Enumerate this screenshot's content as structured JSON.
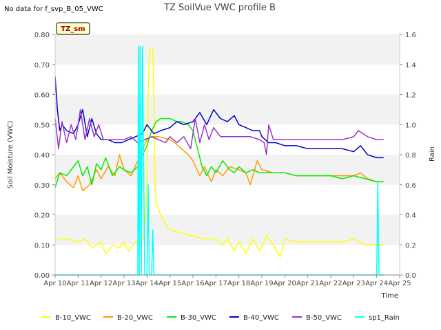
{
  "header": {
    "no_data_note": "No data for f_svp_B_05_VWC"
  },
  "badge": {
    "label": "TZ_sm"
  },
  "chart_data": {
    "type": "line",
    "title": "TZ SoilVue VWC profile B",
    "xlabel": "Time",
    "ylabel": "Soil Moisture (VWC)",
    "y2label": "Rain",
    "x_ticks": [
      "Apr 10",
      "Apr 11",
      "Apr 12",
      "Apr 13",
      "Apr 14",
      "Apr 15",
      "Apr 16",
      "Apr 17",
      "Apr 18",
      "Apr 19",
      "Apr 20",
      "Apr 21",
      "Apr 22",
      "Apr 23",
      "Apr 24",
      "Apr 25"
    ],
    "xlim": [
      10,
      25
    ],
    "ylim": [
      0,
      0.8
    ],
    "y_ticks": [
      "0.00",
      "0.10",
      "0.20",
      "0.30",
      "0.40",
      "0.50",
      "0.60",
      "0.70",
      "0.80"
    ],
    "y2lim": [
      0,
      1.6
    ],
    "y2_ticks": [
      "0.0",
      "0.2",
      "0.4",
      "0.6",
      "0.8",
      "1.0",
      "1.2",
      "1.4",
      "1.6"
    ],
    "grid": "horizontal bands",
    "legend_position": "bottom",
    "series": [
      {
        "name": "B-10_VWC",
        "color": "#ffff00",
        "axis": "left",
        "points": [
          [
            10.0,
            0.12
          ],
          [
            10.5,
            0.12
          ],
          [
            11.0,
            0.11
          ],
          [
            11.3,
            0.12
          ],
          [
            11.6,
            0.09
          ],
          [
            12.0,
            0.11
          ],
          [
            12.2,
            0.07
          ],
          [
            12.5,
            0.1
          ],
          [
            12.8,
            0.09
          ],
          [
            13.0,
            0.11
          ],
          [
            13.2,
            0.08
          ],
          [
            13.5,
            0.11
          ],
          [
            13.7,
            0.1
          ],
          [
            13.85,
            0.13
          ],
          [
            13.95,
            0.2
          ],
          [
            14.0,
            0.35
          ],
          [
            14.05,
            0.6
          ],
          [
            14.1,
            0.72
          ],
          [
            14.15,
            0.75
          ],
          [
            14.25,
            0.75
          ],
          [
            14.3,
            0.6
          ],
          [
            14.35,
            0.3
          ],
          [
            14.4,
            0.24
          ],
          [
            14.6,
            0.2
          ],
          [
            14.8,
            0.17
          ],
          [
            15.0,
            0.15
          ],
          [
            15.5,
            0.14
          ],
          [
            16.0,
            0.13
          ],
          [
            16.5,
            0.12
          ],
          [
            17.0,
            0.12
          ],
          [
            17.3,
            0.1
          ],
          [
            17.5,
            0.12
          ],
          [
            17.8,
            0.08
          ],
          [
            18.0,
            0.11
          ],
          [
            18.3,
            0.07
          ],
          [
            18.6,
            0.12
          ],
          [
            18.9,
            0.08
          ],
          [
            19.2,
            0.13
          ],
          [
            19.5,
            0.1
          ],
          [
            19.8,
            0.06
          ],
          [
            20.0,
            0.12
          ],
          [
            20.5,
            0.11
          ],
          [
            21.0,
            0.11
          ],
          [
            21.5,
            0.11
          ],
          [
            22.0,
            0.11
          ],
          [
            22.5,
            0.11
          ],
          [
            23.0,
            0.12
          ],
          [
            23.5,
            0.1
          ],
          [
            24.0,
            0.1
          ],
          [
            24.3,
            0.1
          ]
        ]
      },
      {
        "name": "B-20_VWC",
        "color": "#ff9900",
        "axis": "left",
        "points": [
          [
            10.0,
            0.32
          ],
          [
            10.2,
            0.34
          ],
          [
            10.5,
            0.31
          ],
          [
            10.8,
            0.29
          ],
          [
            11.0,
            0.33
          ],
          [
            11.2,
            0.28
          ],
          [
            11.5,
            0.3
          ],
          [
            11.8,
            0.35
          ],
          [
            12.0,
            0.32
          ],
          [
            12.3,
            0.36
          ],
          [
            12.6,
            0.33
          ],
          [
            12.8,
            0.4
          ],
          [
            13.0,
            0.35
          ],
          [
            13.3,
            0.33
          ],
          [
            13.6,
            0.38
          ],
          [
            13.8,
            0.42
          ],
          [
            14.0,
            0.45
          ],
          [
            14.2,
            0.46
          ],
          [
            14.5,
            0.46
          ],
          [
            15.0,
            0.45
          ],
          [
            15.2,
            0.44
          ],
          [
            15.5,
            0.42
          ],
          [
            15.8,
            0.4
          ],
          [
            16.0,
            0.38
          ],
          [
            16.3,
            0.33
          ],
          [
            16.5,
            0.36
          ],
          [
            16.8,
            0.31
          ],
          [
            17.0,
            0.35
          ],
          [
            17.3,
            0.33
          ],
          [
            17.6,
            0.36
          ],
          [
            18.0,
            0.35
          ],
          [
            18.3,
            0.34
          ],
          [
            18.5,
            0.3
          ],
          [
            18.8,
            0.38
          ],
          [
            19.0,
            0.35
          ],
          [
            19.5,
            0.34
          ],
          [
            20.0,
            0.34
          ],
          [
            20.5,
            0.33
          ],
          [
            21.0,
            0.33
          ],
          [
            22.0,
            0.33
          ],
          [
            22.5,
            0.33
          ],
          [
            23.0,
            0.33
          ],
          [
            23.3,
            0.34
          ],
          [
            23.6,
            0.32
          ],
          [
            24.0,
            0.31
          ],
          [
            24.3,
            0.31
          ]
        ]
      },
      {
        "name": "B-30_VWC",
        "color": "#00ee00",
        "axis": "left",
        "points": [
          [
            10.0,
            0.29
          ],
          [
            10.2,
            0.34
          ],
          [
            10.5,
            0.33
          ],
          [
            10.8,
            0.36
          ],
          [
            11.0,
            0.38
          ],
          [
            11.2,
            0.33
          ],
          [
            11.4,
            0.36
          ],
          [
            11.6,
            0.3
          ],
          [
            11.8,
            0.37
          ],
          [
            12.0,
            0.35
          ],
          [
            12.2,
            0.39
          ],
          [
            12.5,
            0.33
          ],
          [
            12.8,
            0.36
          ],
          [
            13.0,
            0.35
          ],
          [
            13.3,
            0.34
          ],
          [
            13.6,
            0.36
          ],
          [
            13.8,
            0.4
          ],
          [
            14.0,
            0.43
          ],
          [
            14.2,
            0.48
          ],
          [
            14.4,
            0.51
          ],
          [
            14.6,
            0.52
          ],
          [
            15.0,
            0.52
          ],
          [
            15.3,
            0.51
          ],
          [
            15.5,
            0.51
          ],
          [
            15.8,
            0.5
          ],
          [
            16.0,
            0.48
          ],
          [
            16.2,
            0.42
          ],
          [
            16.4,
            0.36
          ],
          [
            16.6,
            0.33
          ],
          [
            16.8,
            0.36
          ],
          [
            17.0,
            0.34
          ],
          [
            17.3,
            0.38
          ],
          [
            17.6,
            0.35
          ],
          [
            17.8,
            0.34
          ],
          [
            18.0,
            0.36
          ],
          [
            18.3,
            0.34
          ],
          [
            18.6,
            0.35
          ],
          [
            18.9,
            0.34
          ],
          [
            19.2,
            0.34
          ],
          [
            19.5,
            0.34
          ],
          [
            20.0,
            0.34
          ],
          [
            20.5,
            0.33
          ],
          [
            21.0,
            0.33
          ],
          [
            21.5,
            0.33
          ],
          [
            22.0,
            0.33
          ],
          [
            22.5,
            0.32
          ],
          [
            23.0,
            0.33
          ],
          [
            23.5,
            0.32
          ],
          [
            24.0,
            0.31
          ],
          [
            24.3,
            0.31
          ]
        ]
      },
      {
        "name": "B-40_VWC",
        "color": "#0000cc",
        "axis": "left",
        "points": [
          [
            10.0,
            0.66
          ],
          [
            10.1,
            0.55
          ],
          [
            10.2,
            0.48
          ],
          [
            10.3,
            0.5
          ],
          [
            10.5,
            0.48
          ],
          [
            10.8,
            0.47
          ],
          [
            11.0,
            0.5
          ],
          [
            11.2,
            0.55
          ],
          [
            11.4,
            0.46
          ],
          [
            11.6,
            0.52
          ],
          [
            11.8,
            0.47
          ],
          [
            12.0,
            0.45
          ],
          [
            12.3,
            0.45
          ],
          [
            12.6,
            0.44
          ],
          [
            12.9,
            0.44
          ],
          [
            13.2,
            0.45
          ],
          [
            13.5,
            0.46
          ],
          [
            13.8,
            0.47
          ],
          [
            14.0,
            0.5
          ],
          [
            14.3,
            0.47
          ],
          [
            14.6,
            0.48
          ],
          [
            15.0,
            0.49
          ],
          [
            15.3,
            0.51
          ],
          [
            15.6,
            0.5
          ],
          [
            16.0,
            0.51
          ],
          [
            16.3,
            0.54
          ],
          [
            16.6,
            0.5
          ],
          [
            16.9,
            0.55
          ],
          [
            17.2,
            0.52
          ],
          [
            17.5,
            0.51
          ],
          [
            17.8,
            0.53
          ],
          [
            18.0,
            0.5
          ],
          [
            18.3,
            0.49
          ],
          [
            18.6,
            0.48
          ],
          [
            18.9,
            0.48
          ],
          [
            19.0,
            0.46
          ],
          [
            19.3,
            0.44
          ],
          [
            19.6,
            0.44
          ],
          [
            20.0,
            0.43
          ],
          [
            20.5,
            0.43
          ],
          [
            21.0,
            0.42
          ],
          [
            21.5,
            0.42
          ],
          [
            22.0,
            0.42
          ],
          [
            22.5,
            0.42
          ],
          [
            23.0,
            0.41
          ],
          [
            23.3,
            0.43
          ],
          [
            23.6,
            0.4
          ],
          [
            24.0,
            0.39
          ],
          [
            24.3,
            0.39
          ]
        ]
      },
      {
        "name": "B-50_VWC",
        "color": "#9933cc",
        "axis": "left",
        "points": [
          [
            10.0,
            0.52
          ],
          [
            10.15,
            0.42
          ],
          [
            10.3,
            0.51
          ],
          [
            10.5,
            0.44
          ],
          [
            10.7,
            0.5
          ],
          [
            10.9,
            0.45
          ],
          [
            11.1,
            0.55
          ],
          [
            11.3,
            0.45
          ],
          [
            11.5,
            0.52
          ],
          [
            11.7,
            0.46
          ],
          [
            11.9,
            0.5
          ],
          [
            12.1,
            0.45
          ],
          [
            12.4,
            0.45
          ],
          [
            12.7,
            0.45
          ],
          [
            13.0,
            0.45
          ],
          [
            13.3,
            0.46
          ],
          [
            13.6,
            0.44
          ],
          [
            13.9,
            0.45
          ],
          [
            14.2,
            0.46
          ],
          [
            14.5,
            0.45
          ],
          [
            14.8,
            0.44
          ],
          [
            15.0,
            0.46
          ],
          [
            15.3,
            0.44
          ],
          [
            15.6,
            0.46
          ],
          [
            15.9,
            0.42
          ],
          [
            16.1,
            0.52
          ],
          [
            16.3,
            0.44
          ],
          [
            16.5,
            0.5
          ],
          [
            16.7,
            0.45
          ],
          [
            16.9,
            0.49
          ],
          [
            17.2,
            0.46
          ],
          [
            17.5,
            0.46
          ],
          [
            17.8,
            0.46
          ],
          [
            18.1,
            0.46
          ],
          [
            18.5,
            0.46
          ],
          [
            18.9,
            0.45
          ],
          [
            19.1,
            0.44
          ],
          [
            19.2,
            0.4
          ],
          [
            19.3,
            0.5
          ],
          [
            19.5,
            0.45
          ],
          [
            20.0,
            0.45
          ],
          [
            20.5,
            0.45
          ],
          [
            21.0,
            0.45
          ],
          [
            21.5,
            0.45
          ],
          [
            22.0,
            0.45
          ],
          [
            22.5,
            0.45
          ],
          [
            23.0,
            0.46
          ],
          [
            23.2,
            0.48
          ],
          [
            23.4,
            0.47
          ],
          [
            23.6,
            0.46
          ],
          [
            24.0,
            0.45
          ],
          [
            24.3,
            0.45
          ]
        ]
      },
      {
        "name": "sp1_Rain",
        "color": "#00ffff",
        "axis": "right",
        "points": [
          [
            10.0,
            0.0
          ],
          [
            13.6,
            0.0
          ],
          [
            13.62,
            1.52
          ],
          [
            13.66,
            0.0
          ],
          [
            13.7,
            1.52
          ],
          [
            13.75,
            0.0
          ],
          [
            13.8,
            1.52
          ],
          [
            13.85,
            0.8
          ],
          [
            13.9,
            0.0
          ],
          [
            14.0,
            0.0
          ],
          [
            14.05,
            0.6
          ],
          [
            14.1,
            0.0
          ],
          [
            14.2,
            0.0
          ],
          [
            14.25,
            0.3
          ],
          [
            14.3,
            0.0
          ],
          [
            24.0,
            0.0
          ],
          [
            24.05,
            0.62
          ],
          [
            24.1,
            0.0
          ],
          [
            24.3,
            0.0
          ]
        ]
      }
    ]
  }
}
